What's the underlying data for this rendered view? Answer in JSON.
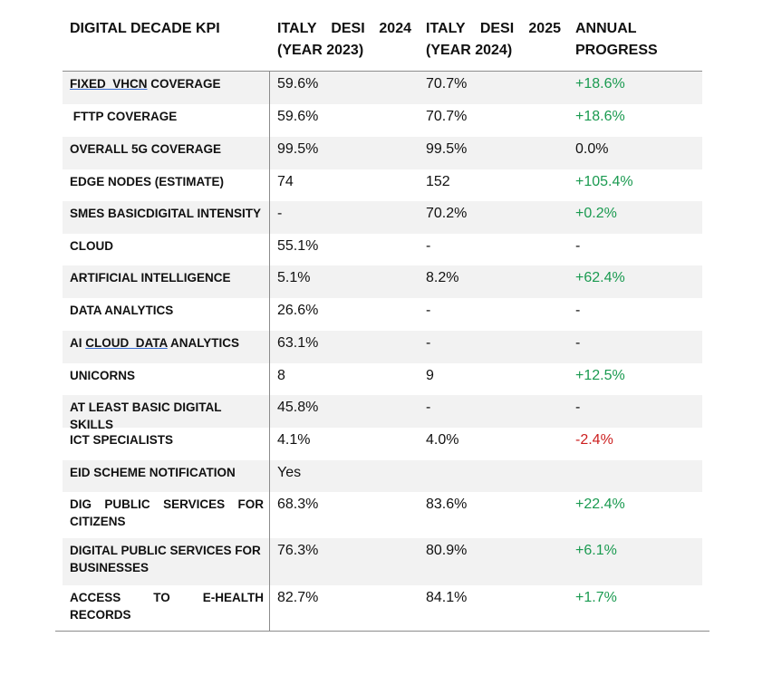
{
  "header": {
    "col1": "DIGITAL DECADE KPI",
    "col2": {
      "line1": [
        "ITALY",
        "DESI",
        "2024"
      ],
      "line2": "(YEAR 2023)"
    },
    "col3": {
      "line1": [
        "ITALY",
        "DESI",
        "2025"
      ],
      "line2": "(YEAR 2024)"
    },
    "col4": {
      "line1": "ANNUAL",
      "line2": "PROGRESS"
    }
  },
  "rows": [
    {
      "kpi_pre": "",
      "kpi_u": "FIXED  VHCN",
      "kpi_post": " COVERAGE",
      "v2024": "59.6%",
      "v2025": "70.7%",
      "progress": "+18.6%",
      "tone": "pos"
    },
    {
      "kpi_pre": " FTTP COVERAGE",
      "kpi_u": "",
      "kpi_post": "",
      "v2024": "59.6%",
      "v2025": "70.7%",
      "progress": "+18.6%",
      "tone": "pos"
    },
    {
      "kpi_pre": "OVERALL 5G COVERAGE",
      "kpi_u": "",
      "kpi_post": "",
      "v2024": "99.5%",
      "v2025": "99.5%",
      "progress": "0.0%",
      "tone": "neu"
    },
    {
      "kpi_pre": "EDGE NODES (ESTIMATE)",
      "kpi_u": "",
      "kpi_post": "",
      "v2024": "74",
      "v2025": "152",
      "progress": "+105.4%",
      "tone": "pos"
    },
    {
      "kpi_pre": "SMES BASICDIGITAL INTENSITY",
      "kpi_u": "",
      "kpi_post": "",
      "v2024": "-",
      "v2025": "70.2%",
      "progress": "+0.2%",
      "tone": "pos"
    },
    {
      "kpi_pre": "CLOUD",
      "kpi_u": "",
      "kpi_post": "",
      "v2024": "55.1%",
      "v2025": "-",
      "progress": "-",
      "tone": "neu"
    },
    {
      "kpi_pre": "ARTIFICIAL INTELLIGENCE",
      "kpi_u": "",
      "kpi_post": "",
      "v2024": "5.1%",
      "v2025": "8.2%",
      "progress": "+62.4%",
      "tone": "pos"
    },
    {
      "kpi_pre": "DATA ANALYTICS",
      "kpi_u": "",
      "kpi_post": "",
      "v2024": "26.6%",
      "v2025": "-",
      "progress": "-",
      "tone": "neu"
    },
    {
      "kpi_pre": "AI ",
      "kpi_u": "CLOUD  DATA",
      "kpi_post": " ANALYTICS",
      "v2024": "63.1%",
      "v2025": "-",
      "progress": "-",
      "tone": "neu"
    },
    {
      "kpi_pre": "UNICORNS",
      "kpi_u": "",
      "kpi_post": "",
      "v2024": "8",
      "v2025": "9",
      "progress": "+12.5%",
      "tone": "pos"
    },
    {
      "kpi_pre": "AT LEAST BASIC DIGITAL SKILLS",
      "kpi_u": "",
      "kpi_post": "",
      "v2024": "45.8%",
      "v2025": "-",
      "progress": "-",
      "tone": "neu"
    },
    {
      "kpi_pre": "ICT SPECIALISTS",
      "kpi_u": "",
      "kpi_post": "",
      "v2024": "4.1%",
      "v2025": "4.0%",
      "progress": "-2.4%",
      "tone": "neg"
    },
    {
      "kpi_pre": "EID SCHEME NOTIFICATION",
      "kpi_u": "",
      "kpi_post": "",
      "v2024": "Yes",
      "v2025": "",
      "progress": "",
      "tone": "neu"
    },
    {
      "kpi_pre": "DIG PUBLIC SERVICES FOR CITIZENS",
      "kpi_u": "",
      "kpi_post": "",
      "v2024": "68.3%",
      "v2025": "83.6%",
      "progress": "+22.4%",
      "tone": "pos"
    },
    {
      "kpi_pre": "DIGITAL PUBLIC SERVICES FOR BUSINESSES",
      "kpi_u": "",
      "kpi_post": "",
      "v2024": "76.3%",
      "v2025": "80.9%",
      "progress": "+6.1%",
      "tone": "pos"
    },
    {
      "kpi_pre": "ACCESS TO E-HEALTH RECORDS",
      "kpi_u": "",
      "kpi_post": "",
      "v2024": "82.7%",
      "v2025": "84.1%",
      "progress": "+1.7%",
      "tone": "pos"
    }
  ],
  "colors": {
    "positive": "#1a9a50",
    "negative": "#cc1f1f",
    "shade": "#f2f2f2",
    "rule": "#8c8c8c"
  }
}
